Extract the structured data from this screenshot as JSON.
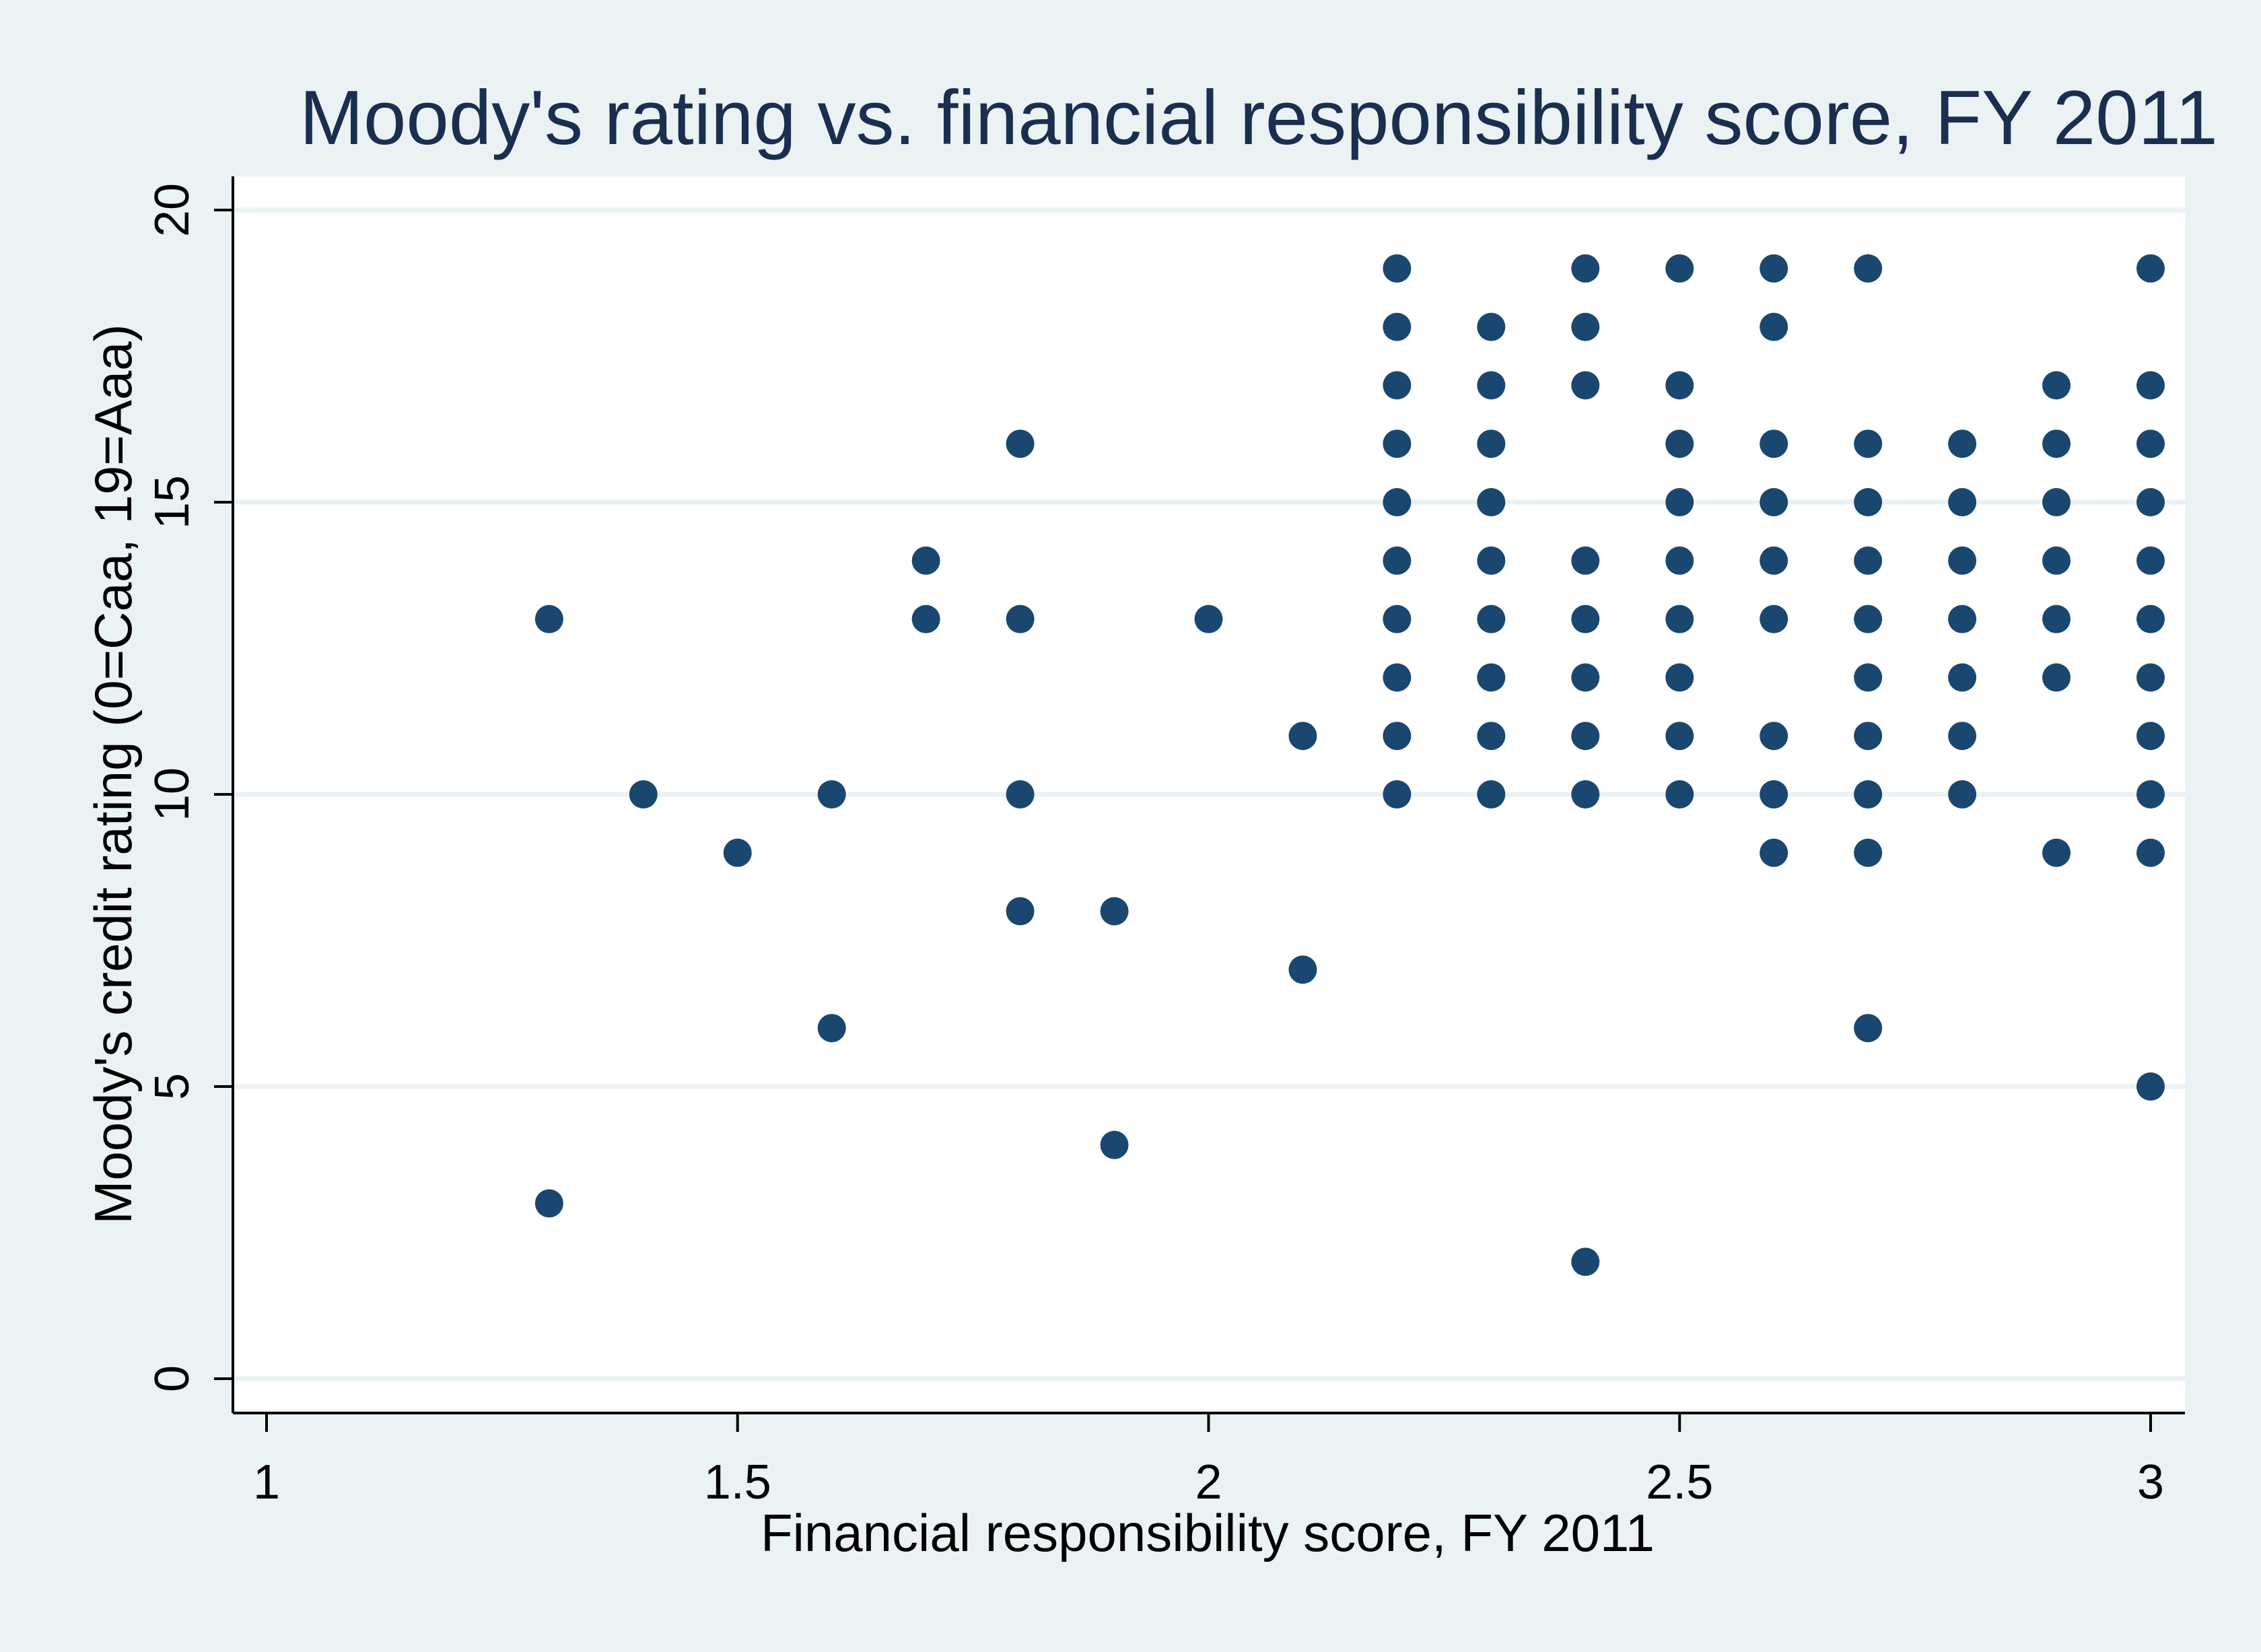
{
  "chart_data": {
    "type": "scatter",
    "title": "Moody's rating vs. financial responsibility score, FY 2011",
    "xlabel": "Financial responsibility score, FY 2011",
    "ylabel": "Moody's credit rating (0=Caa, 19=Aaa)",
    "xlim": [
      1,
      3
    ],
    "ylim": [
      0,
      20
    ],
    "x_ticks": [
      1,
      1.5,
      2,
      2.5,
      3
    ],
    "x_tick_labels": [
      "1",
      "1.5",
      "2",
      "2.5",
      "3"
    ],
    "y_ticks": [
      0,
      5,
      10,
      15,
      20
    ],
    "y_tick_labels": [
      "0",
      "5",
      "10",
      "15",
      "20"
    ],
    "grid": "horizontal",
    "legend": "none",
    "colors": {
      "outer_background": "#eaf2f3",
      "plot_background": "#ffffff",
      "gridline": "#eaf2f3",
      "marker": "#1a476f",
      "title": "#1a2e4f"
    },
    "points": [
      [
        1.3,
        13
      ],
      [
        1.3,
        3
      ],
      [
        1.4,
        10
      ],
      [
        1.5,
        9
      ],
      [
        1.6,
        10
      ],
      [
        1.6,
        6
      ],
      [
        1.7,
        14
      ],
      [
        1.7,
        13
      ],
      [
        1.8,
        16
      ],
      [
        1.8,
        13
      ],
      [
        1.8,
        10
      ],
      [
        1.8,
        8
      ],
      [
        1.9,
        8
      ],
      [
        1.9,
        4
      ],
      [
        2.0,
        13
      ],
      [
        2.1,
        11
      ],
      [
        2.1,
        7
      ],
      [
        2.2,
        19
      ],
      [
        2.2,
        18
      ],
      [
        2.2,
        17
      ],
      [
        2.2,
        16
      ],
      [
        2.2,
        15
      ],
      [
        2.2,
        14
      ],
      [
        2.2,
        13
      ],
      [
        2.2,
        12
      ],
      [
        2.2,
        11
      ],
      [
        2.2,
        10
      ],
      [
        2.3,
        18
      ],
      [
        2.3,
        17
      ],
      [
        2.3,
        16
      ],
      [
        2.3,
        15
      ],
      [
        2.3,
        14
      ],
      [
        2.3,
        13
      ],
      [
        2.3,
        12
      ],
      [
        2.3,
        11
      ],
      [
        2.3,
        10
      ],
      [
        2.4,
        19
      ],
      [
        2.4,
        18
      ],
      [
        2.4,
        17
      ],
      [
        2.4,
        14
      ],
      [
        2.4,
        13
      ],
      [
        2.4,
        12
      ],
      [
        2.4,
        11
      ],
      [
        2.4,
        10
      ],
      [
        2.4,
        2
      ],
      [
        2.5,
        19
      ],
      [
        2.5,
        17
      ],
      [
        2.5,
        16
      ],
      [
        2.5,
        15
      ],
      [
        2.5,
        14
      ],
      [
        2.5,
        13
      ],
      [
        2.5,
        12
      ],
      [
        2.5,
        11
      ],
      [
        2.5,
        10
      ],
      [
        2.6,
        19
      ],
      [
        2.6,
        18
      ],
      [
        2.6,
        16
      ],
      [
        2.6,
        15
      ],
      [
        2.6,
        14
      ],
      [
        2.6,
        13
      ],
      [
        2.6,
        11
      ],
      [
        2.6,
        10
      ],
      [
        2.6,
        9
      ],
      [
        2.7,
        19
      ],
      [
        2.7,
        16
      ],
      [
        2.7,
        15
      ],
      [
        2.7,
        14
      ],
      [
        2.7,
        13
      ],
      [
        2.7,
        12
      ],
      [
        2.7,
        11
      ],
      [
        2.7,
        10
      ],
      [
        2.7,
        9
      ],
      [
        2.7,
        6
      ],
      [
        2.8,
        16
      ],
      [
        2.8,
        15
      ],
      [
        2.8,
        14
      ],
      [
        2.8,
        13
      ],
      [
        2.8,
        12
      ],
      [
        2.8,
        11
      ],
      [
        2.8,
        10
      ],
      [
        2.9,
        17
      ],
      [
        2.9,
        16
      ],
      [
        2.9,
        15
      ],
      [
        2.9,
        14
      ],
      [
        2.9,
        13
      ],
      [
        2.9,
        12
      ],
      [
        2.9,
        9
      ],
      [
        3.0,
        19
      ],
      [
        3.0,
        17
      ],
      [
        3.0,
        16
      ],
      [
        3.0,
        15
      ],
      [
        3.0,
        14
      ],
      [
        3.0,
        13
      ],
      [
        3.0,
        12
      ],
      [
        3.0,
        11
      ],
      [
        3.0,
        10
      ],
      [
        3.0,
        9
      ],
      [
        3.0,
        5
      ]
    ]
  }
}
